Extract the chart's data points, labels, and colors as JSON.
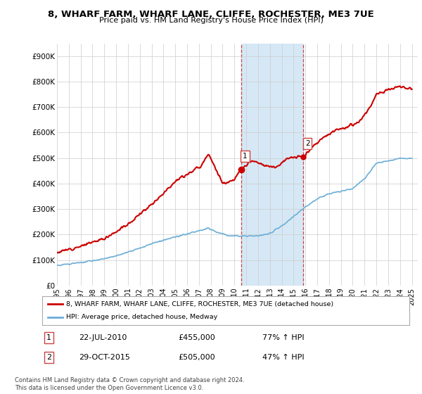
{
  "title": "8, WHARF FARM, WHARF LANE, CLIFFE, ROCHESTER, ME3 7UE",
  "subtitle": "Price paid vs. HM Land Registry's House Price Index (HPI)",
  "xlim_start": 1995.0,
  "xlim_end": 2025.5,
  "ylim": [
    0,
    950000
  ],
  "yticks": [
    0,
    100000,
    200000,
    300000,
    400000,
    500000,
    600000,
    700000,
    800000,
    900000
  ],
  "ytick_labels": [
    "£0",
    "£100K",
    "£200K",
    "£300K",
    "£400K",
    "£500K",
    "£600K",
    "£700K",
    "£800K",
    "£900K"
  ],
  "sale1_x": 2010.55,
  "sale1_y": 455000,
  "sale2_x": 2015.83,
  "sale2_y": 505000,
  "shaded_color": "#d6e8f5",
  "hpi_line_color": "#6baed6",
  "price_line_color": "#cc0000",
  "marker_color": "#cc0000",
  "vline_color": "#cc4444",
  "legend1_label": "8, WHARF FARM, WHARF LANE, CLIFFE, ROCHESTER, ME3 7UE (detached house)",
  "legend2_label": "HPI: Average price, detached house, Medway",
  "annotation1_date": "22-JUL-2010",
  "annotation1_price": "£455,000",
  "annotation1_hpi": "77% ↑ HPI",
  "annotation2_date": "29-OCT-2015",
  "annotation2_price": "£505,000",
  "annotation2_hpi": "47% ↑ HPI",
  "footer": "Contains HM Land Registry data © Crown copyright and database right 2024.\nThis data is licensed under the Open Government Licence v3.0.",
  "background_color": "#ffffff",
  "grid_color": "#cccccc"
}
